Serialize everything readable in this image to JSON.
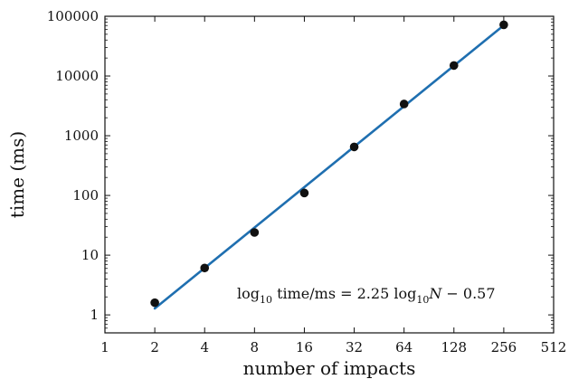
{
  "chart_data": {
    "type": "scatter",
    "title": "",
    "xlabel": "number of impacts",
    "ylabel": "time (ms)",
    "x_scale": "log2",
    "y_scale": "log10",
    "xlim": [
      1,
      512
    ],
    "ylim": [
      0.5,
      100000
    ],
    "x_ticks": [
      1,
      2,
      4,
      8,
      16,
      32,
      64,
      128,
      256,
      512
    ],
    "x_tick_labels": [
      "1",
      "2",
      "4",
      "8",
      "16",
      "32",
      "64",
      "128",
      "256",
      "512"
    ],
    "y_ticks": [
      1,
      10,
      100,
      1000,
      10000,
      100000
    ],
    "y_tick_labels": [
      "1",
      "10",
      "100",
      "1000",
      "10000",
      "100000"
    ],
    "grid": false,
    "legend": "none",
    "series": [
      {
        "kind": "points",
        "color": "#111111",
        "x": [
          2,
          4,
          8,
          16,
          32,
          64,
          128,
          256
        ],
        "y": [
          1.6,
          6.1,
          24,
          110,
          650,
          3400,
          15000,
          72000
        ]
      },
      {
        "kind": "fit-line",
        "color": "#1f6fb0",
        "slope": 2.25,
        "intercept": -0.57,
        "x_range": [
          2,
          256
        ]
      }
    ],
    "annotation": {
      "pre": "log",
      "sub1": "10",
      "mid": "  time/ms = 2.25 log",
      "sub2": "10",
      "var": "N",
      "post": " − 0.57"
    }
  }
}
